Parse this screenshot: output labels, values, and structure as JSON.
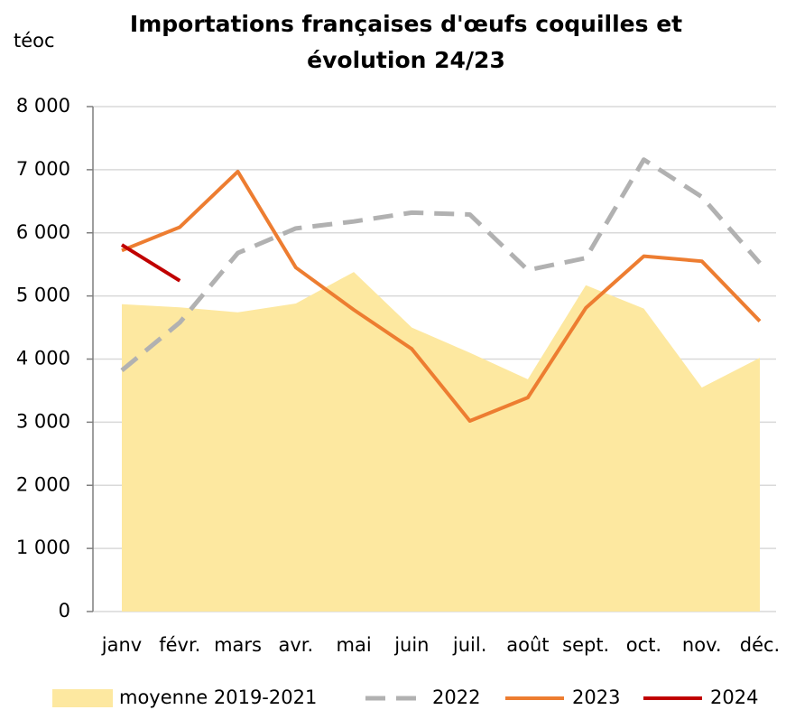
{
  "chart_data": {
    "type": "line",
    "title": [
      "Importations françaises d'œufs coquilles et",
      "évolution 24/23"
    ],
    "y_label": "téoc",
    "categories": [
      "janv",
      "févr.",
      "mars",
      "avr.",
      "mai",
      "juin",
      "juil.",
      "août",
      "sept.",
      "oct.",
      "nov.",
      "déc."
    ],
    "series": [
      {
        "name": "moyenne 2019-2021",
        "kind": "area",
        "color": "#fde8a0",
        "values": [
          4870,
          4820,
          4740,
          4880,
          5380,
          4500,
          4100,
          3680,
          5170,
          4800,
          3550,
          4020
        ]
      },
      {
        "name": "2022",
        "kind": "line",
        "dashed": true,
        "color": "#b1b1b1",
        "values": [
          3820,
          4580,
          5680,
          6070,
          6180,
          6320,
          6290,
          5410,
          5600,
          7160,
          6570,
          5520
        ]
      },
      {
        "name": "2023",
        "kind": "line",
        "color": "#ed7d31",
        "values": [
          5720,
          6090,
          6970,
          5450,
          4780,
          4160,
          3020,
          3390,
          4810,
          5630,
          5550,
          4600
        ]
      },
      {
        "name": "2024",
        "kind": "line",
        "color": "#c00000",
        "values": [
          5810,
          5240,
          null,
          null,
          null,
          null,
          null,
          null,
          null,
          null,
          null,
          null
        ]
      }
    ],
    "ylim": [
      0,
      8000
    ],
    "yticks": [
      0,
      {
        "value": 1000,
        "label": "1 000"
      },
      {
        "value": 2000,
        "label": "2 000"
      },
      {
        "value": 3000,
        "label": "3 000"
      },
      {
        "value": 4000,
        "label": "4 000"
      },
      {
        "value": 5000,
        "label": "5 000"
      },
      {
        "value": 6000,
        "label": "6 000"
      },
      {
        "value": 7000,
        "label": "7 000"
      },
      {
        "value": 8000,
        "label": "8 000"
      }
    ],
    "grid": true
  }
}
